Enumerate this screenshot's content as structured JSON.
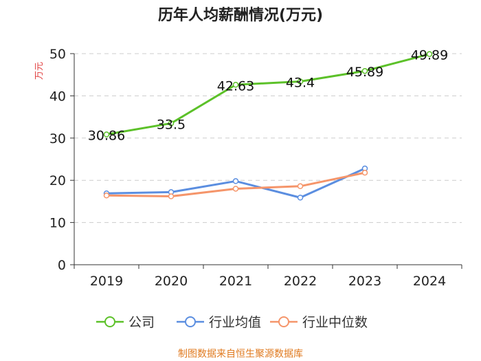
{
  "chart_data": {
    "type": "line",
    "title": "历年人均薪酬情况(万元)",
    "ylabel": "万元",
    "xlabel": "",
    "categories": [
      "2019",
      "2020",
      "2021",
      "2022",
      "2023",
      "2024"
    ],
    "ylim": [
      0,
      50
    ],
    "yticks": [
      0,
      10,
      20,
      30,
      40,
      50
    ],
    "grid": true,
    "legend_position": "bottom",
    "series": [
      {
        "name": "公司",
        "color": "#5cc129",
        "values": [
          30.86,
          33.5,
          42.63,
          43.4,
          45.89,
          49.89
        ],
        "labels": [
          "30.86",
          "33.5",
          "42.63",
          "43.4",
          "45.89",
          "49.89"
        ]
      },
      {
        "name": "行业均值",
        "color": "#5b8ee0",
        "values": [
          16.9,
          17.2,
          19.8,
          15.9,
          22.8,
          null
        ]
      },
      {
        "name": "行业中位数",
        "color": "#f5956a",
        "values": [
          16.4,
          16.2,
          18.0,
          18.6,
          21.8,
          null
        ]
      }
    ],
    "source": "制图数据来自恒生聚源数据库"
  }
}
